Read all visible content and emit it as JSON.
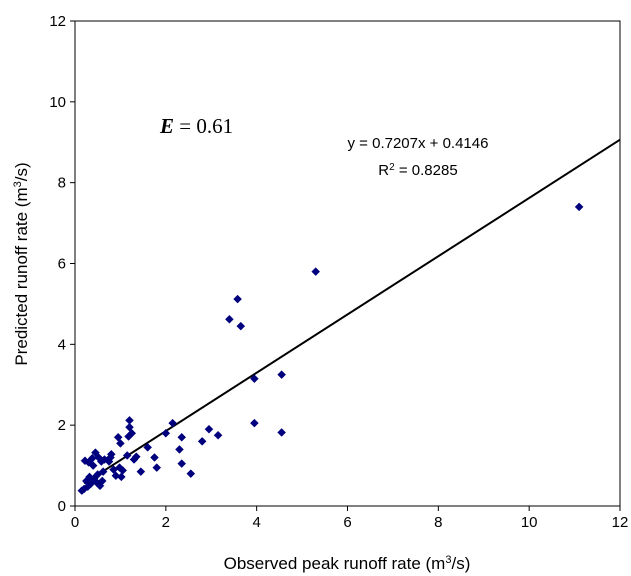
{
  "chart_data": {
    "type": "scatter",
    "xlabel": {
      "prefix": "Observed peak runoff rate (m",
      "sup": "3",
      "suffix": "/s)"
    },
    "ylabel": {
      "prefix": "Predicted runoff rate (m",
      "sup": "3",
      "suffix": "/s)"
    },
    "xlim": [
      0,
      12
    ],
    "ylim": [
      0,
      12
    ],
    "x_ticks": [
      0,
      2,
      4,
      6,
      8,
      10,
      12
    ],
    "y_ticks": [
      0,
      2,
      4,
      6,
      8,
      10,
      12
    ],
    "grid": false,
    "legend": "none",
    "marker_color": "#00007f",
    "marker_shape": "diamond",
    "line_color": "#000000",
    "annotations": {
      "efficiency_symbol": "E",
      "efficiency_text": " = 0.61",
      "equation": "y = 0.7207x + 0.4146",
      "r2_prefix": "R",
      "r2_sup": "2",
      "r2_suffix": " = 0.8285"
    },
    "trendline": {
      "slope": 0.7207,
      "intercept": 0.4146,
      "x_range": [
        0.2,
        12
      ]
    },
    "points": [
      [
        0.15,
        0.38
      ],
      [
        0.2,
        0.42
      ],
      [
        0.22,
        1.12
      ],
      [
        0.25,
        0.62
      ],
      [
        0.28,
        0.48
      ],
      [
        0.3,
        1.08
      ],
      [
        0.32,
        0.72
      ],
      [
        0.35,
        0.55
      ],
      [
        0.38,
        1.18
      ],
      [
        0.4,
        1.0
      ],
      [
        0.42,
        0.68
      ],
      [
        0.45,
        1.32
      ],
      [
        0.48,
        0.58
      ],
      [
        0.5,
        0.78
      ],
      [
        0.52,
        1.2
      ],
      [
        0.55,
        0.5
      ],
      [
        0.58,
        1.1
      ],
      [
        0.6,
        0.62
      ],
      [
        0.62,
        0.85
      ],
      [
        0.65,
        1.15
      ],
      [
        0.75,
        1.1
      ],
      [
        0.78,
        1.2
      ],
      [
        0.8,
        1.28
      ],
      [
        0.85,
        0.9
      ],
      [
        0.9,
        0.75
      ],
      [
        0.95,
        1.7
      ],
      [
        0.98,
        0.95
      ],
      [
        1.0,
        1.55
      ],
      [
        1.02,
        0.72
      ],
      [
        1.05,
        0.88
      ],
      [
        1.15,
        1.25
      ],
      [
        1.18,
        1.72
      ],
      [
        1.2,
        1.95
      ],
      [
        1.2,
        2.12
      ],
      [
        1.25,
        1.8
      ],
      [
        1.3,
        1.15
      ],
      [
        1.35,
        1.22
      ],
      [
        1.45,
        0.85
      ],
      [
        1.6,
        1.45
      ],
      [
        1.75,
        1.2
      ],
      [
        1.8,
        0.95
      ],
      [
        2.0,
        1.8
      ],
      [
        2.15,
        2.05
      ],
      [
        2.3,
        1.4
      ],
      [
        2.35,
        1.05
      ],
      [
        2.35,
        1.7
      ],
      [
        2.55,
        0.8
      ],
      [
        2.8,
        1.6
      ],
      [
        2.95,
        1.9
      ],
      [
        3.15,
        1.75
      ],
      [
        3.4,
        4.62
      ],
      [
        3.58,
        5.12
      ],
      [
        3.65,
        4.45
      ],
      [
        3.95,
        3.15
      ],
      [
        3.95,
        2.05
      ],
      [
        4.55,
        3.25
      ],
      [
        4.55,
        1.82
      ],
      [
        5.3,
        5.8
      ],
      [
        11.1,
        7.4
      ]
    ]
  }
}
